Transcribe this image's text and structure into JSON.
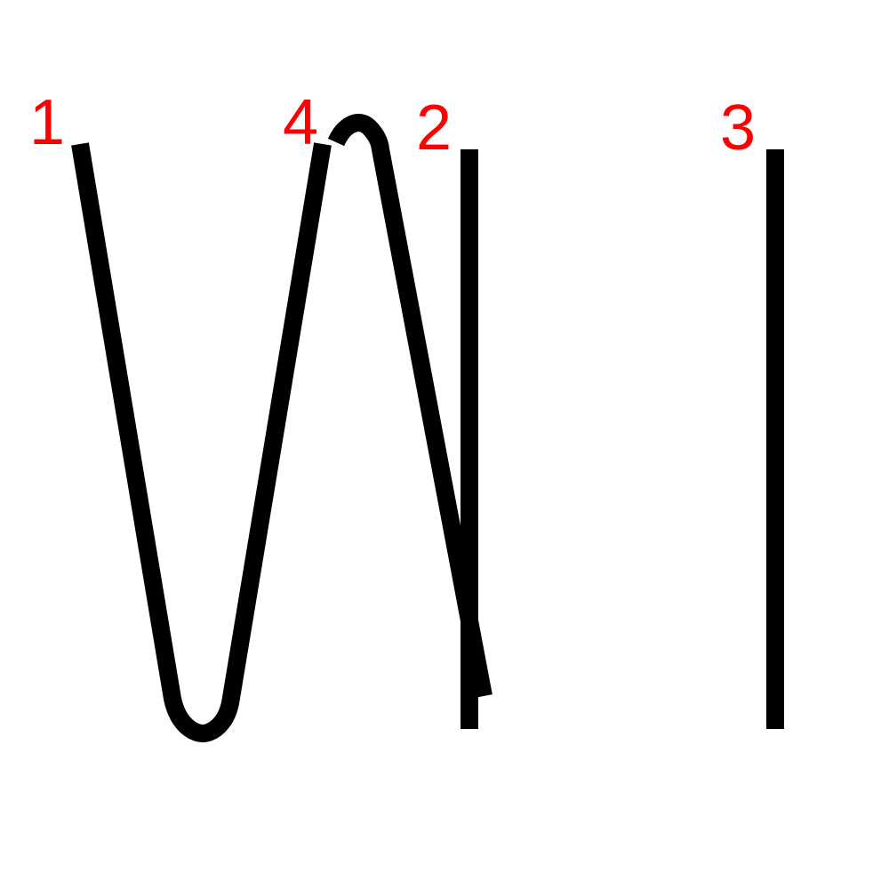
{
  "diagram": {
    "description": "stroke-order",
    "colors": {
      "stroke": "#000000",
      "label": "#ff0000",
      "background": "#ffffff"
    },
    "strokes": [
      {
        "id": "s1",
        "label": "1"
      },
      {
        "id": "s2",
        "label": "2"
      },
      {
        "id": "s3",
        "label": "3"
      },
      {
        "id": "s4",
        "label": "4"
      }
    ]
  }
}
